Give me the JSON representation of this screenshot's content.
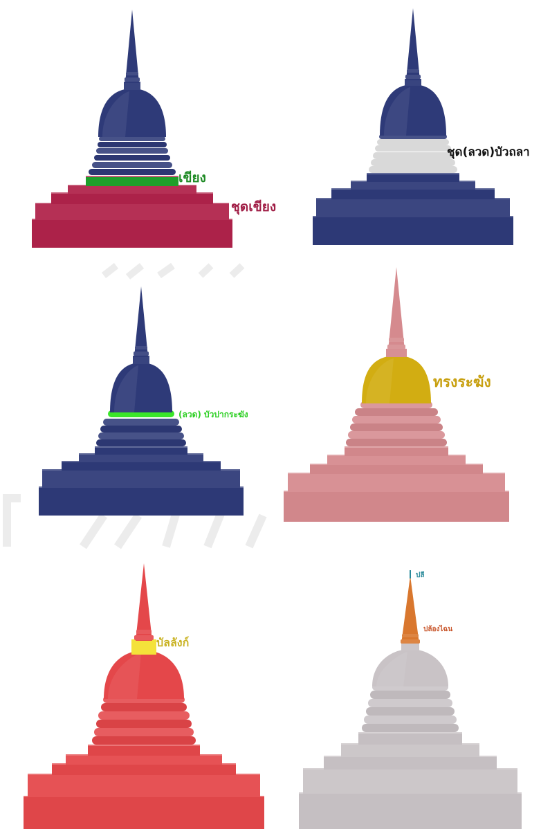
{
  "panels": [
    {
      "id": "p1",
      "stupa_color": "#2e3a78",
      "base_color": "#b0234a",
      "highlight_color": "#1e9e2a",
      "labels": [
        {
          "text": "เขียง",
          "color": "#1e8a24"
        },
        {
          "text": "ชุดเขียง",
          "color": "#a01e46"
        }
      ]
    },
    {
      "id": "p2",
      "stupa_color": "#2e3a78",
      "highlight_color": "#d9d9d9",
      "labels": [
        {
          "text": "ชุด(ลวด)บัวถลา",
          "color": "#111111"
        }
      ]
    },
    {
      "id": "p3",
      "stupa_color": "#2e3a78",
      "highlight_color": "#3ae62a",
      "labels": [
        {
          "text": "(ลวด) บัวปากระฆัง",
          "color": "#2ccf22"
        }
      ]
    },
    {
      "id": "p4",
      "stupa_color": "#d58a8e",
      "highlight_color": "#d2ad12",
      "labels": [
        {
          "text": "ทรงระฆัง",
          "color": "#c8a010"
        }
      ]
    },
    {
      "id": "p5",
      "stupa_color": "#e4474a",
      "highlight_color": "#f4e23a",
      "labels": [
        {
          "text": "บัลลังก์",
          "color": "#c9b222"
        }
      ]
    },
    {
      "id": "p6",
      "stupa_color": "#c9c3c6",
      "highlight_color": "#d9772e",
      "labels": [
        {
          "text": "ปลี",
          "color": "#2a8a9a"
        },
        {
          "text": "ปล้องไฉน",
          "color": "#c8552a"
        }
      ]
    }
  ]
}
